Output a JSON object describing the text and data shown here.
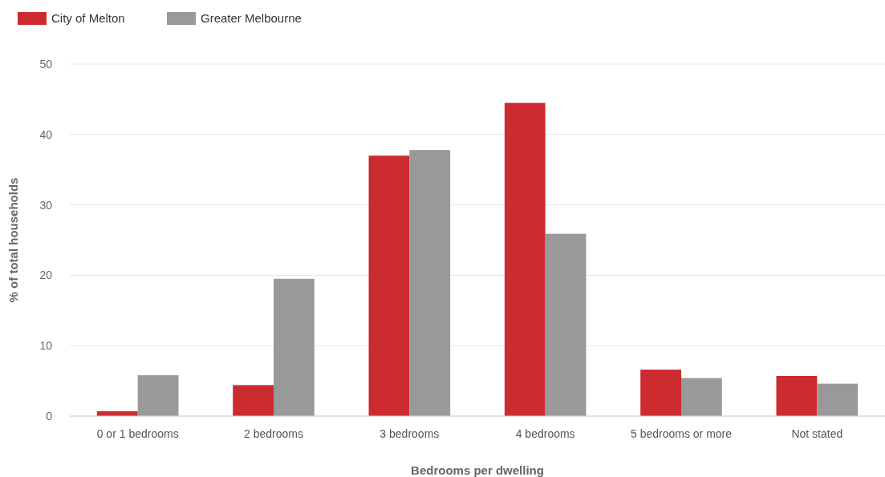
{
  "chart_data": {
    "type": "bar",
    "xlabel": "Bedrooms per dwelling",
    "ylabel": "% of total households",
    "categories": [
      "0 or 1 bedrooms",
      "2 bedrooms",
      "3 bedrooms",
      "4 bedrooms",
      "5 bedrooms or more",
      "Not stated"
    ],
    "series": [
      {
        "name": "City of Melton",
        "color": "#cc2b30",
        "values": [
          0.7,
          4.4,
          37.0,
          44.5,
          6.6,
          5.7
        ]
      },
      {
        "name": "Greater Melbourne",
        "color": "#999999",
        "values": [
          5.8,
          19.5,
          37.8,
          25.9,
          5.4,
          4.6
        ]
      }
    ],
    "ylim": [
      0,
      50
    ],
    "yticks": [
      0,
      10,
      20,
      30,
      40,
      50
    ],
    "grid": "y",
    "legend": "top left"
  }
}
